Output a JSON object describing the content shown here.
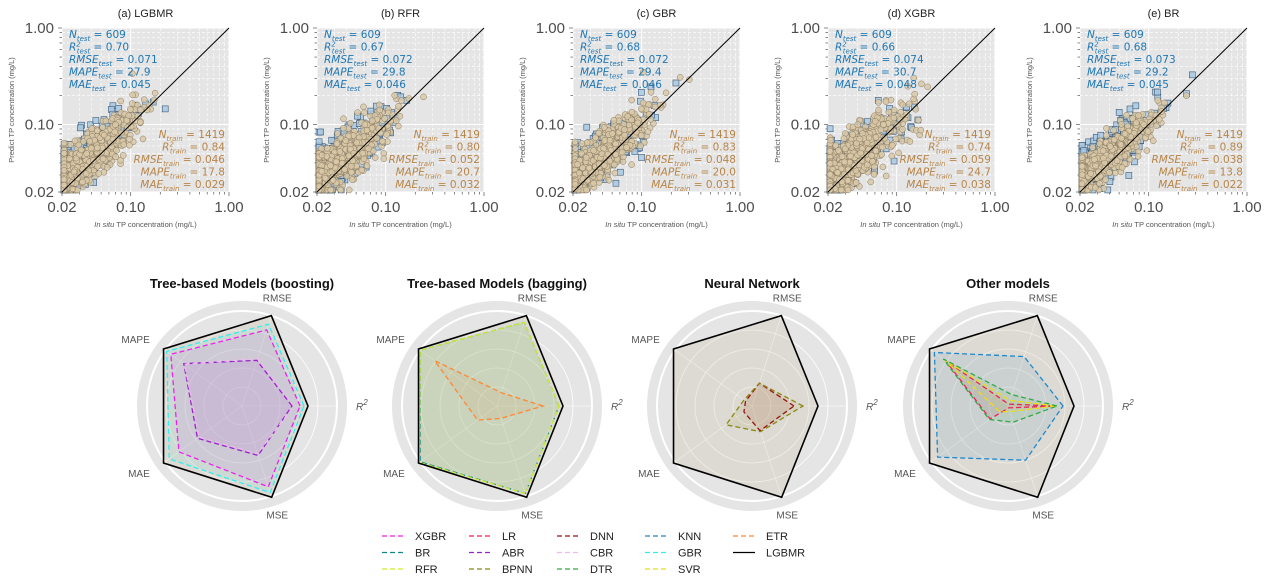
{
  "chart_data": [
    {
      "type": "scatter",
      "title": "(a) LGBMR",
      "xlabel_italic": "In situ",
      "xlabel": "TP concentration (mg/L)",
      "ylabel": "Predict TP concentration (mg/L)",
      "scale": "log",
      "xlim": [
        0.02,
        1.0
      ],
      "ylim": [
        0.02,
        1.0
      ],
      "xticks": [
        "0.02",
        "0.10",
        "1.00"
      ],
      "yticks": [
        "0.02",
        "0.10",
        "1.00"
      ],
      "series": [
        {
          "name": "test",
          "marker": "square",
          "color": "#1f77b4"
        },
        {
          "name": "train",
          "marker": "circle",
          "color": "#b8864a"
        }
      ],
      "test_stats": {
        "N": "609",
        "R2": "0.70",
        "RMSE": "0.071",
        "MAPE": "27.9",
        "MAE": "0.045"
      },
      "train_stats": {
        "N": "1419",
        "R2": "0.84",
        "RMSE": "0.046",
        "MAPE": "17.8",
        "MAE": "0.029"
      }
    },
    {
      "type": "scatter",
      "title": "(b) RFR",
      "xlabel_italic": "In situ",
      "xlabel": "TP concentration (mg/L)",
      "ylabel": "Predict TP concentration (mg/L)",
      "scale": "log",
      "xlim": [
        0.02,
        1.0
      ],
      "ylim": [
        0.02,
        1.0
      ],
      "xticks": [
        "0.02",
        "0.10",
        "1.00"
      ],
      "yticks": [
        "0.02",
        "0.10",
        "1.00"
      ],
      "series": [
        {
          "name": "test",
          "marker": "square",
          "color": "#1f77b4"
        },
        {
          "name": "train",
          "marker": "circle",
          "color": "#b8864a"
        }
      ],
      "test_stats": {
        "N": "609",
        "R2": "0.67",
        "RMSE": "0.072",
        "MAPE": "29.8",
        "MAE": "0.046"
      },
      "train_stats": {
        "N": "1419",
        "R2": "0.80",
        "RMSE": "0.052",
        "MAPE": "20.7",
        "MAE": "0.032"
      }
    },
    {
      "type": "scatter",
      "title": "(c) GBR",
      "xlabel_italic": "In situ",
      "xlabel": "TP concentration (mg/L)",
      "ylabel": "Predict TP concentration (mg/L)",
      "scale": "log",
      "xlim": [
        0.02,
        1.0
      ],
      "ylim": [
        0.02,
        1.0
      ],
      "xticks": [
        "0.02",
        "0.10",
        "1.00"
      ],
      "yticks": [
        "0.02",
        "0.10",
        "1.00"
      ],
      "series": [
        {
          "name": "test",
          "marker": "square",
          "color": "#1f77b4"
        },
        {
          "name": "train",
          "marker": "circle",
          "color": "#b8864a"
        }
      ],
      "test_stats": {
        "N": "609",
        "R2": "0.68",
        "RMSE": "0.072",
        "MAPE": "29.4",
        "MAE": "0.046"
      },
      "train_stats": {
        "N": "1419",
        "R2": "0.83",
        "RMSE": "0.048",
        "MAPE": "20.0",
        "MAE": "0.031"
      }
    },
    {
      "type": "scatter",
      "title": "(d) XGBR",
      "xlabel_italic": "In situ",
      "xlabel": "TP concentration (mg/L)",
      "ylabel": "Predict TP concentration (mg/L)",
      "scale": "log",
      "xlim": [
        0.02,
        1.0
      ],
      "ylim": [
        0.02,
        1.0
      ],
      "xticks": [
        "0.02",
        "0.10",
        "1.00"
      ],
      "yticks": [
        "0.02",
        "0.10",
        "1.00"
      ],
      "series": [
        {
          "name": "test",
          "marker": "square",
          "color": "#1f77b4"
        },
        {
          "name": "train",
          "marker": "circle",
          "color": "#b8864a"
        }
      ],
      "test_stats": {
        "N": "609",
        "R2": "0.66",
        "RMSE": "0.074",
        "MAPE": "30.7",
        "MAE": "0.048"
      },
      "train_stats": {
        "N": "1419",
        "R2": "0.74",
        "RMSE": "0.059",
        "MAPE": "24.7",
        "MAE": "0.038"
      }
    },
    {
      "type": "scatter",
      "title": "(e) BR",
      "xlabel_italic": "In situ",
      "xlabel": "TP concentration (mg/L)",
      "ylabel": "Predict TP concentration (mg/L)",
      "scale": "log",
      "xlim": [
        0.02,
        1.0
      ],
      "ylim": [
        0.02,
        1.0
      ],
      "xticks": [
        "0.02",
        "0.10",
        "1.00"
      ],
      "yticks": [
        "0.02",
        "0.10",
        "1.00"
      ],
      "series": [
        {
          "name": "test",
          "marker": "square",
          "color": "#1f77b4"
        },
        {
          "name": "train",
          "marker": "circle",
          "color": "#b8864a"
        }
      ],
      "test_stats": {
        "N": "609",
        "R2": "0.68",
        "RMSE": "0.073",
        "MAPE": "29.2",
        "MAE": "0.045"
      },
      "train_stats": {
        "N": "1419",
        "R2": "0.89",
        "RMSE": "0.038",
        "MAPE": "13.8",
        "MAE": "0.022"
      }
    },
    {
      "type": "radar",
      "title": "Tree-based Models (boosting)",
      "axes": [
        "R2",
        "RMSE",
        "MAPE",
        "MAE",
        "MSE"
      ],
      "axis_labels": [
        "R",
        "RMSE",
        "MAPE",
        "MAE",
        "MSE"
      ],
      "rlim": [
        0,
        1
      ],
      "series": [
        {
          "name": "LGBMR",
          "values": [
            0.66,
            0.95,
            0.97,
            0.97,
            0.96
          ]
        },
        {
          "name": "GBR",
          "values": [
            0.62,
            0.86,
            0.93,
            0.9,
            0.91
          ]
        },
        {
          "name": "XGBR",
          "values": [
            0.58,
            0.8,
            0.88,
            0.78,
            0.85
          ]
        },
        {
          "name": "CBR",
          "values": [
            0.52,
            0.5,
            0.71,
            0.53,
            0.5
          ]
        },
        {
          "name": "ABR",
          "values": [
            0.5,
            0.48,
            0.72,
            0.55,
            0.52
          ]
        }
      ]
    },
    {
      "type": "radar",
      "title": "Tree-based Models (bagging)",
      "axes": [
        "R2",
        "RMSE",
        "MAPE",
        "MAE",
        "MSE"
      ],
      "axis_labels": [
        "R",
        "RMSE",
        "MAPE",
        "MAE",
        "MSE"
      ],
      "rlim": [
        0,
        1
      ],
      "series": [
        {
          "name": "LGBMR",
          "values": [
            0.66,
            0.95,
            0.97,
            0.97,
            0.96
          ]
        },
        {
          "name": "RFR",
          "values": [
            0.62,
            0.88,
            0.95,
            0.96,
            0.92
          ]
        },
        {
          "name": "BR",
          "values": [
            0.62,
            0.88,
            0.95,
            0.95,
            0.92
          ]
        },
        {
          "name": "ETR",
          "values": [
            0.46,
            0.14,
            0.77,
            0.24,
            0.13
          ]
        }
      ]
    },
    {
      "type": "radar",
      "title": "Neural Network",
      "axes": [
        "R2",
        "RMSE",
        "MAPE",
        "MAE",
        "MSE"
      ],
      "axis_labels": [
        "R",
        "RMSE",
        "MAPE",
        "MAE",
        "MSE"
      ],
      "rlim": [
        0,
        1
      ],
      "series": [
        {
          "name": "LGBMR",
          "values": [
            0.66,
            0.95,
            0.97,
            0.97,
            0.96
          ]
        },
        {
          "name": "BPNN",
          "values": [
            0.51,
            0.24,
            0.1,
            0.32,
            0.27
          ]
        },
        {
          "name": "DNN",
          "values": [
            0.42,
            0.24,
            0.08,
            0.1,
            0.26
          ]
        }
      ]
    },
    {
      "type": "radar",
      "title": "Other models",
      "axes": [
        "R2",
        "RMSE",
        "MAPE",
        "MAE",
        "MSE"
      ],
      "axis_labels": [
        "R",
        "RMSE",
        "MAPE",
        "MAE",
        "MSE"
      ],
      "rlim": [
        0,
        1
      ],
      "series": [
        {
          "name": "LGBMR",
          "values": [
            0.66,
            0.95,
            0.97,
            0.97,
            0.96
          ]
        },
        {
          "name": "KNN",
          "values": [
            0.55,
            0.52,
            0.91,
            0.87,
            0.57
          ]
        },
        {
          "name": "DTR",
          "values": [
            0.49,
            0.12,
            0.8,
            0.23,
            0.17
          ]
        },
        {
          "name": "SVR",
          "values": [
            0.47,
            0.06,
            0.78,
            0.1,
            0.06
          ]
        },
        {
          "name": "LR",
          "values": [
            0.46,
            0.02,
            0.77,
            0.22,
            0.02
          ]
        }
      ]
    }
  ],
  "legend": {
    "items": [
      {
        "name": "XGBR",
        "color": "#ee22ee",
        "style": "dashed"
      },
      {
        "name": "BR",
        "color": "#118888",
        "style": "dashed"
      },
      {
        "name": "RFR",
        "color": "#ccee33",
        "style": "dashed"
      },
      {
        "name": "LR",
        "color": "#ee2255",
        "style": "dashed"
      },
      {
        "name": "ABR",
        "color": "#9922cc",
        "style": "dashed"
      },
      {
        "name": "BPNN",
        "color": "#888811",
        "style": "dashed"
      },
      {
        "name": "DNN",
        "color": "#991111",
        "style": "dashed"
      },
      {
        "name": "CBR",
        "color": "#eebbee",
        "style": "dashed"
      },
      {
        "name": "DTR",
        "color": "#33aa44",
        "style": "dashed"
      },
      {
        "name": "KNN",
        "color": "#1f88cc",
        "style": "dashed"
      },
      {
        "name": "GBR",
        "color": "#33eeee",
        "style": "dashed"
      },
      {
        "name": "SVR",
        "color": "#eedd11",
        "style": "dashed"
      },
      {
        "name": "ETR",
        "color": "#ff8833",
        "style": "dashed"
      },
      {
        "name": "LGBMR",
        "color": "#000000",
        "style": "solid"
      }
    ]
  },
  "colors": {
    "panel_bg": "#e5e5e5",
    "test_text": "#1f77b4",
    "train_text": "#b8864a",
    "test_marker_fill": "#a9c8e2",
    "train_marker_fill": "#d9c9a8"
  }
}
